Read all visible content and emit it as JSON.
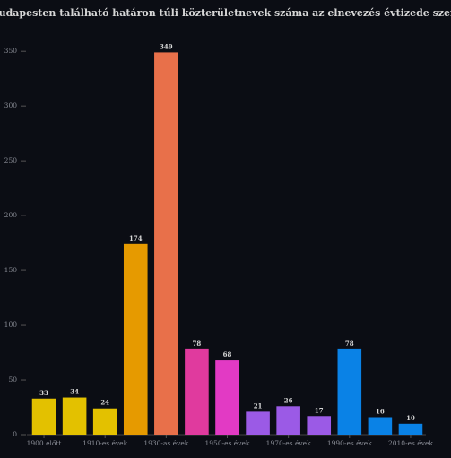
{
  "chart_data": {
    "type": "bar",
    "title": "A Budapesten található határon túli közterületnevek száma az elnevezés évtizede szerint",
    "categories": [
      "1900 előtt",
      null,
      "1910-es évek",
      null,
      "1930-as évek",
      null,
      "1950-es évek",
      null,
      "1970-es évek",
      null,
      "1990-es évek",
      null,
      "2010-es évek"
    ],
    "values": [
      33,
      34,
      24,
      174,
      349,
      78,
      68,
      21,
      26,
      17,
      78,
      16,
      10
    ],
    "colors": [
      "#e3c100",
      "#e3c100",
      "#e3c100",
      "#e69a00",
      "#e8704a",
      "#e03a9e",
      "#e23ac4",
      "#9b5ae6",
      "#9b5ae6",
      "#9b5ae6",
      "#0a82e6",
      "#0a82e6",
      "#0a82e6"
    ],
    "ylim": [
      0,
      360
    ],
    "yticks": [
      0,
      50,
      100,
      150,
      200,
      250,
      300,
      350
    ]
  }
}
